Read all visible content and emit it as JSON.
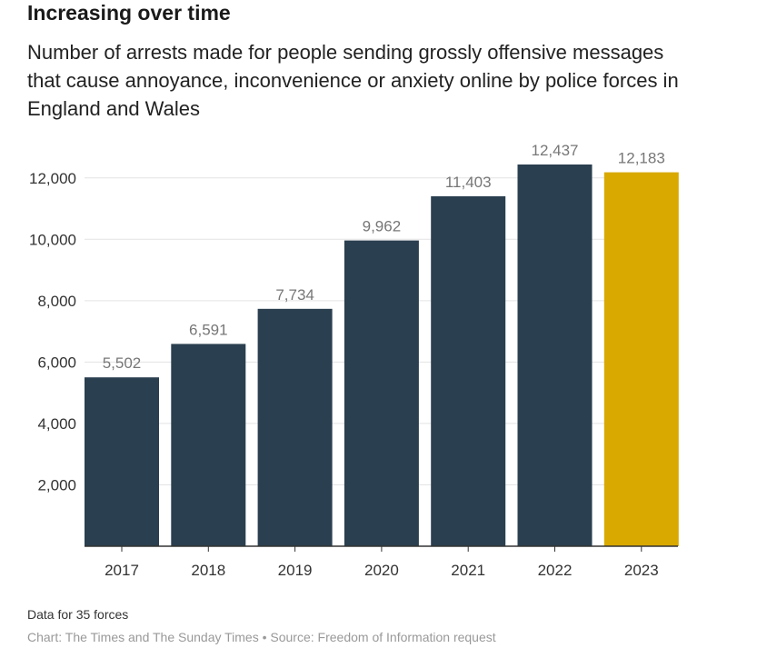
{
  "title": "Increasing over time",
  "subtitle": "Number of arrests made for people sending grossly offensive messages that cause annoyance, inconvenience or anxiety online by police forces in England and Wales",
  "footnote": "Data for 35 forces",
  "credit": "Chart: The Times and The Sunday Times • Source: Freedom of Information request",
  "colors": {
    "bar": "#2a3f4f",
    "highlight": "#d9a900",
    "grid": "#e3e3e3",
    "axis": "#333333"
  },
  "chart_data": {
    "type": "bar",
    "categories": [
      "2017",
      "2018",
      "2019",
      "2020",
      "2021",
      "2022",
      "2023"
    ],
    "values": [
      5502,
      6591,
      7734,
      9962,
      11403,
      12437,
      12183
    ],
    "value_labels": [
      "5,502",
      "6,591",
      "7,734",
      "9,962",
      "11,403",
      "12,437",
      "12,183"
    ],
    "highlight_index": 6,
    "yticks": [
      2000,
      4000,
      6000,
      8000,
      10000,
      12000
    ],
    "ytick_labels": [
      "2,000",
      "4,000",
      "6,000",
      "8,000",
      "10,000",
      "12,000"
    ],
    "ylim": [
      0,
      12437
    ],
    "grid": true,
    "legend": "none"
  }
}
